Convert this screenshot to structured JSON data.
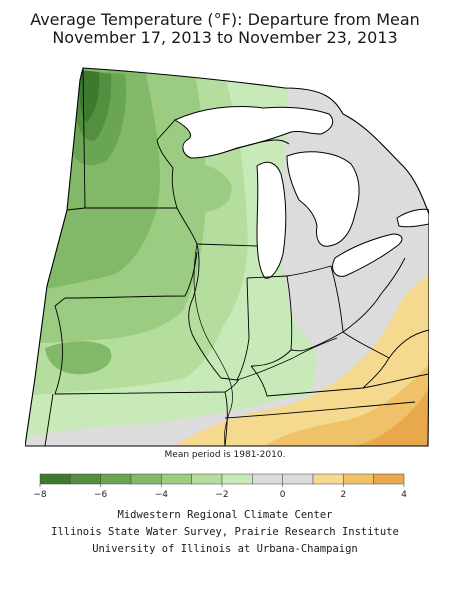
{
  "map": {
    "title_line1": "Average Temperature (°F): Departure from Mean",
    "title_line2": "November 17, 2013 to November 23, 2013",
    "note": "Mean period is 1981-2010.",
    "legend": {
      "unit": "°F",
      "bins": [
        {
          "range": [
            -8,
            -7
          ],
          "color": "#3e7a2e"
        },
        {
          "range": [
            -7,
            -6
          ],
          "color": "#538f3e"
        },
        {
          "range": [
            -6,
            -5
          ],
          "color": "#6aa552"
        },
        {
          "range": [
            -5,
            -4
          ],
          "color": "#82b968"
        },
        {
          "range": [
            -4,
            -3
          ],
          "color": "#9bcc82"
        },
        {
          "range": [
            -3,
            -2
          ],
          "color": "#b4dd9e"
        },
        {
          "range": [
            -2,
            -1
          ],
          "color": "#c8e9b8"
        },
        {
          "range": [
            -1,
            0
          ],
          "color": "#dcdcdc"
        },
        {
          "range": [
            0,
            1
          ],
          "color": "#dcdcdc"
        },
        {
          "range": [
            1,
            2
          ],
          "color": "#f4d98e"
        },
        {
          "range": [
            2,
            3
          ],
          "color": "#efc26a"
        },
        {
          "range": [
            3,
            4
          ],
          "color": "#e9a94a"
        }
      ],
      "tick_labels": [
        "-8",
        "-6",
        "-4",
        "-2",
        "0",
        "2",
        "4"
      ]
    },
    "credits": [
      "Midwestern Regional Climate Center",
      "Illinois State Water Survey, Prairie Research Institute",
      "University of Illinois at Urbana-Champaign"
    ]
  }
}
